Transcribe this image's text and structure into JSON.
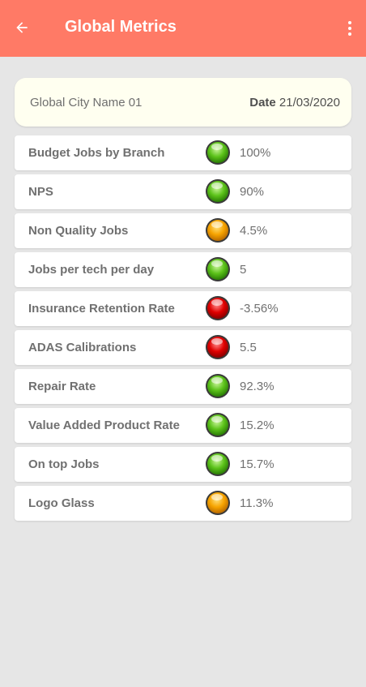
{
  "appbar": {
    "title": "Global Metrics",
    "back_icon": "arrow-left-icon",
    "menu_icon": "more-vertical-icon",
    "color": "#ff7a66"
  },
  "header": {
    "city": "Global City Name 01",
    "date_label": "Date",
    "date_value": "21/03/2020"
  },
  "status_colors": {
    "green": "#3fae12",
    "orange": "#f59b00",
    "red": "#e00000"
  },
  "metrics": [
    {
      "label": "Budget Jobs by Branch",
      "status": "green",
      "value": "100%"
    },
    {
      "label": "NPS",
      "status": "green",
      "value": "90%"
    },
    {
      "label": "Non Quality Jobs",
      "status": "orange",
      "value": "4.5%"
    },
    {
      "label": "Jobs per tech per day",
      "status": "green",
      "value": "5"
    },
    {
      "label": "Insurance Retention Rate",
      "status": "red",
      "value": "-3.56%"
    },
    {
      "label": "ADAS Calibrations",
      "status": "red",
      "value": "5.5"
    },
    {
      "label": "Repair Rate",
      "status": "green",
      "value": "92.3%"
    },
    {
      "label": "Value Added Product Rate",
      "status": "green",
      "value": "15.2%"
    },
    {
      "label": "On top Jobs",
      "status": "green",
      "value": "15.7%"
    },
    {
      "label": "Logo Glass",
      "status": "orange",
      "value": "11.3%"
    }
  ]
}
